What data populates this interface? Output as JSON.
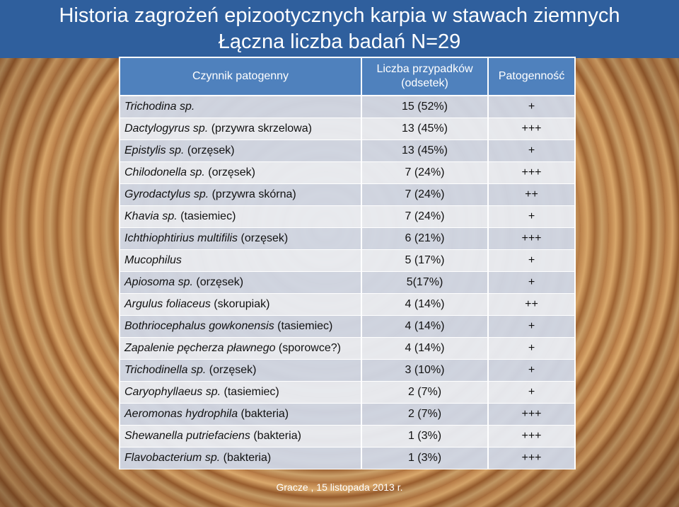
{
  "title": {
    "line1": "Historia zagrożeń epizootycznych karpia w stawach ziemnych",
    "line2": "Łączna liczba badań N=29"
  },
  "table": {
    "headers": {
      "factor": "Czynnik patogenny",
      "cases_line1": "Liczba przypadków",
      "cases_line2": "(odsetek)",
      "pathogenicity": "Patogenność"
    },
    "rows": [
      {
        "name_italic": "Trichodina sp.",
        "name_rest": "",
        "count": "15 (52%)",
        "path": "+"
      },
      {
        "name_italic": "Dactylogyrus sp.",
        "name_rest": " (przywra skrzelowa)",
        "count": "13 (45%)",
        "path": "+++"
      },
      {
        "name_italic": "Epistylis sp.",
        "name_rest": " (orzęsek)",
        "count": "13 (45%)",
        "path": "+"
      },
      {
        "name_italic": "Chilodonella sp.",
        "name_rest": " (orzęsek)",
        "count": "7 (24%)",
        "path": "+++"
      },
      {
        "name_italic": "Gyrodactylus sp.",
        "name_rest": " (przywra skórna)",
        "count": "7 (24%)",
        "path": "++"
      },
      {
        "name_italic": "Khavia sp.",
        "name_rest": " (tasiemiec)",
        "count": "7 (24%)",
        "path": "+"
      },
      {
        "name_italic": "Ichthiophtirius multifilis",
        "name_rest": " (orzęsek)",
        "count": "6 (21%)",
        "path": "+++"
      },
      {
        "name_italic": "Mucophilus",
        "name_rest": "",
        "count": "5 (17%)",
        "path": "+"
      },
      {
        "name_italic": "Apiosoma sp.",
        "name_rest": " (orzęsek)",
        "count": "5(17%)",
        "path": "+"
      },
      {
        "name_italic": "Argulus foliaceus",
        "name_rest": " (skorupiak)",
        "count": "4 (14%)",
        "path": "++"
      },
      {
        "name_italic": "Bothriocephalus gowkonensis",
        "name_rest": " (tasiemiec)",
        "count": "4 (14%)",
        "path": "+"
      },
      {
        "name_italic": "Zapalenie pęcherza pławnego",
        "name_rest": " (sporowce?)",
        "count": "4 (14%)",
        "path": "+"
      },
      {
        "name_italic": "Trichodinella sp.",
        "name_rest": " (orzęsek)",
        "count": "3 (10%)",
        "path": "+"
      },
      {
        "name_italic": "Caryophyllaeus sp.",
        "name_rest": " (tasiemiec)",
        "count": "2 (7%)",
        "path": "+"
      },
      {
        "name_italic": "Aeromonas hydrophila",
        "name_rest": " (bakteria)",
        "count": "2 (7%)",
        "path": "+++"
      },
      {
        "name_italic": "Shewanella putriefaciens",
        "name_rest": " (bakteria)",
        "count": "1 (3%)",
        "path": "+++"
      },
      {
        "name_italic": "Flavobacterium sp.",
        "name_rest": " (bakteria)",
        "count": "1 (3%)",
        "path": "+++"
      }
    ]
  },
  "footer": "Gracze , 15 listopada 2013 r."
}
